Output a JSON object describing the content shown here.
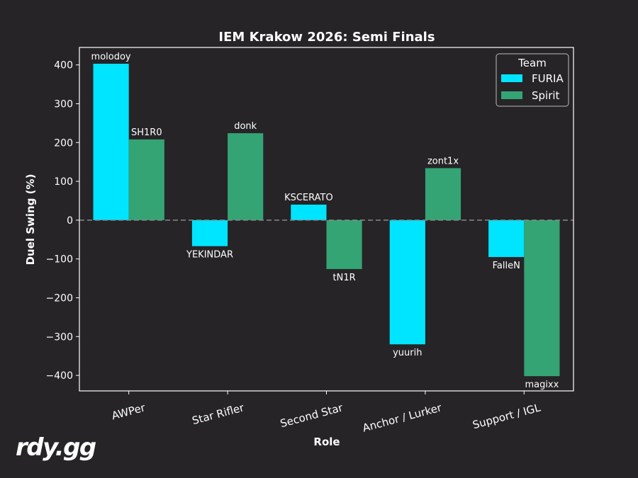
{
  "brand": {
    "logo_text": "rdy.gg"
  },
  "colors": {
    "background": "#262427",
    "FURIA": "#00e5ff",
    "Spirit": "#34a474",
    "text": "#ffffff",
    "zero_line": "#888888"
  },
  "chart_data": {
    "type": "bar",
    "title": "IEM Krakow 2026: Semi Finals",
    "xlabel": "Role",
    "ylabel": "Duel Swing (%)",
    "ylim": [
      -440,
      445
    ],
    "yticks": [
      400,
      300,
      200,
      100,
      0,
      -100,
      -200,
      -300,
      -400
    ],
    "ytick_labels": [
      "400",
      "300",
      "200",
      "100",
      "0",
      "−100",
      "−200",
      "−300",
      "−400"
    ],
    "categories": [
      "AWPer",
      "Star Rifler",
      "Second Star",
      "Anchor / Lurker",
      "Support / IGL"
    ],
    "legend": {
      "title": "Team",
      "position": "top-right"
    },
    "grid": false,
    "zero_line": "dashed",
    "series": [
      {
        "name": "FURIA",
        "values": [
          403,
          -67,
          40,
          -320,
          -95
        ],
        "labels": [
          "molodoy",
          "YEKINDAR",
          "KSCERATO",
          "yuurih",
          "FalleN"
        ]
      },
      {
        "name": "Spirit",
        "values": [
          208,
          224,
          -126,
          134,
          -402
        ],
        "labels": [
          "SH1R0",
          "donk",
          "tN1R",
          "zont1x",
          "magixx"
        ]
      }
    ]
  }
}
